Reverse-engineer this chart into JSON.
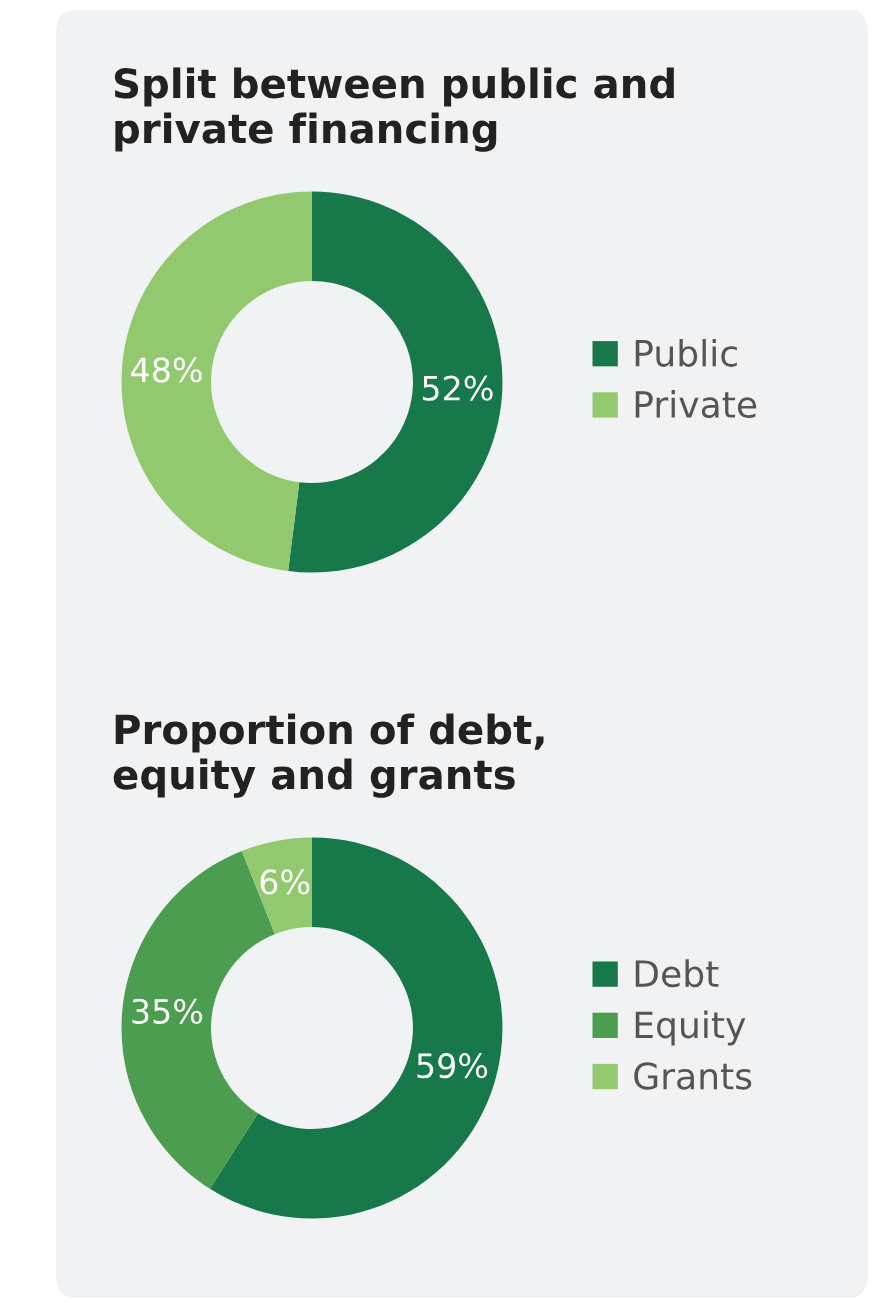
{
  "chart_data": [
    {
      "type": "donut",
      "title": "Split between public and\nprivate financing",
      "categories": [
        "Public",
        "Private"
      ],
      "values": [
        52,
        48
      ],
      "value_labels": [
        "52%",
        "48%"
      ],
      "colors": [
        "#17784a",
        "#92c96f"
      ],
      "legend": "right"
    },
    {
      "type": "donut",
      "title": "Proportion of debt,\nequity and grants",
      "categories": [
        "Debt",
        "Equity",
        "Grants"
      ],
      "values": [
        59,
        35,
        6
      ],
      "value_labels": [
        "59%",
        "35%",
        "6%"
      ],
      "colors": [
        "#17784a",
        "#4d9d50",
        "#92c96f"
      ],
      "legend": "right"
    }
  ]
}
